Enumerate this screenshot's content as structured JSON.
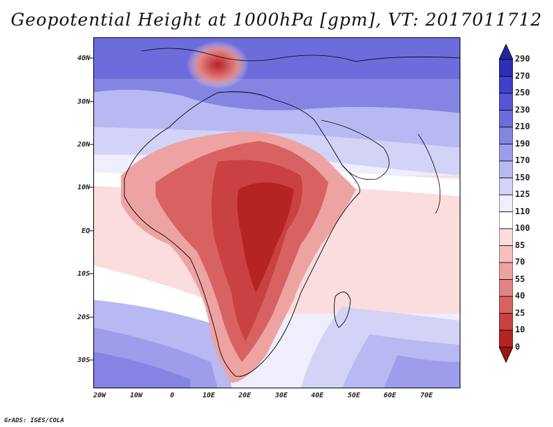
{
  "title": "Geopotential Height at 1000hPa [gpm], VT: 2017011712",
  "latitude_labels": [
    "40N",
    "30N",
    "20N",
    "10N",
    "EQ",
    "10S",
    "20S",
    "30S"
  ],
  "longitude_labels": [
    "20W",
    "10W",
    "0",
    "10E",
    "20E",
    "30E",
    "40E",
    "50E",
    "60E",
    "70E"
  ],
  "colorbar": {
    "levels": [
      "290",
      "270",
      "250",
      "230",
      "210",
      "190",
      "170",
      "150",
      "125",
      "110",
      "100",
      "85",
      "70",
      "55",
      "40",
      "25",
      "10",
      "0"
    ],
    "colors": [
      "#23239b",
      "#2d2db8",
      "#3f3fca",
      "#5656d4",
      "#6c6cdc",
      "#8484e3",
      "#9d9deb",
      "#b8b8f2",
      "#d3d3f8",
      "#eeeefc",
      "#ffffff",
      "#fbdddd",
      "#f6c0c0",
      "#eea3a3",
      "#e48383",
      "#d86262",
      "#c94141",
      "#b52323",
      "#9d1414"
    ]
  },
  "credit": "GrADS: IGES/COLA"
}
